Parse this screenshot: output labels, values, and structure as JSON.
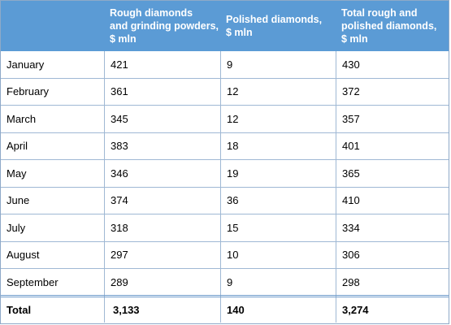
{
  "table": {
    "headers": [
      "",
      "Rough diamonds\nand grinding powders,\n$ mln",
      "Polished diamonds,\n$ mln",
      "Total rough and\npolished diamonds,\n$ mln"
    ],
    "rows": [
      {
        "month": "January",
        "rough": "421",
        "polished": "9",
        "total": "430"
      },
      {
        "month": "February",
        "rough": "361",
        "polished": "12",
        "total": "372"
      },
      {
        "month": "March",
        "rough": "345",
        "polished": "12",
        "total": "357"
      },
      {
        "month": "April",
        "rough": "383",
        "polished": "18",
        "total": "401"
      },
      {
        "month": "May",
        "rough": "346",
        "polished": "19",
        "total": "365"
      },
      {
        "month": "June",
        "rough": "374",
        "polished": "36",
        "total": "410"
      },
      {
        "month": "July",
        "rough": "318",
        "polished": "15",
        "total": "334"
      },
      {
        "month": "August",
        "rough": "297",
        "polished": "10",
        "total": "306"
      },
      {
        "month": "September",
        "rough": "289",
        "polished": "9",
        "total": "298"
      }
    ],
    "total": {
      "label": "Total",
      "rough": "3,133",
      "polished": "140",
      "total": "3,274"
    }
  },
  "colors": {
    "header_bg": "#5b9bd5",
    "grid": "#9fb8d4"
  }
}
